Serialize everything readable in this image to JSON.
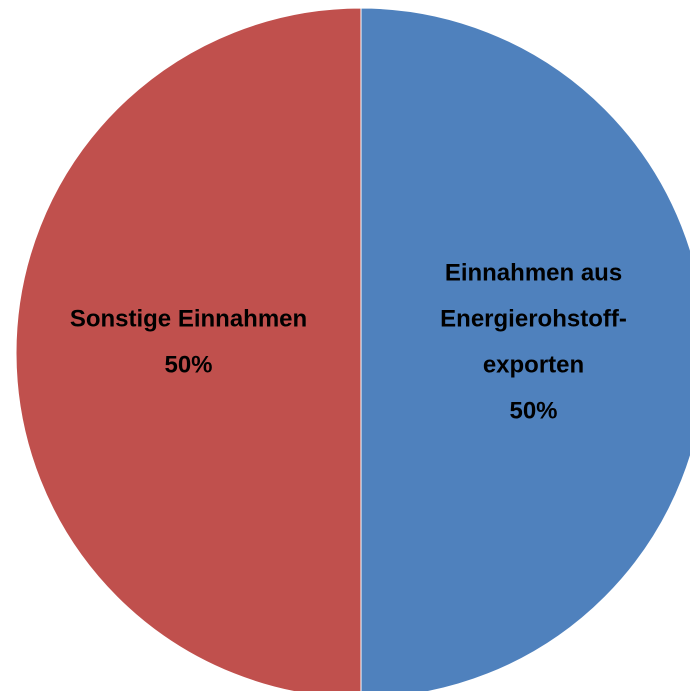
{
  "chart_data": {
    "type": "pie",
    "categories": [
      [
        "Einnahmen aus",
        "Energierohstoff-",
        "exporten"
      ],
      [
        "Sonstige Einnahmen"
      ]
    ],
    "values": [
      50,
      50
    ],
    "value_labels": [
      "50%",
      "50%"
    ],
    "colors": [
      "#4f81bd",
      "#c0504d"
    ]
  }
}
